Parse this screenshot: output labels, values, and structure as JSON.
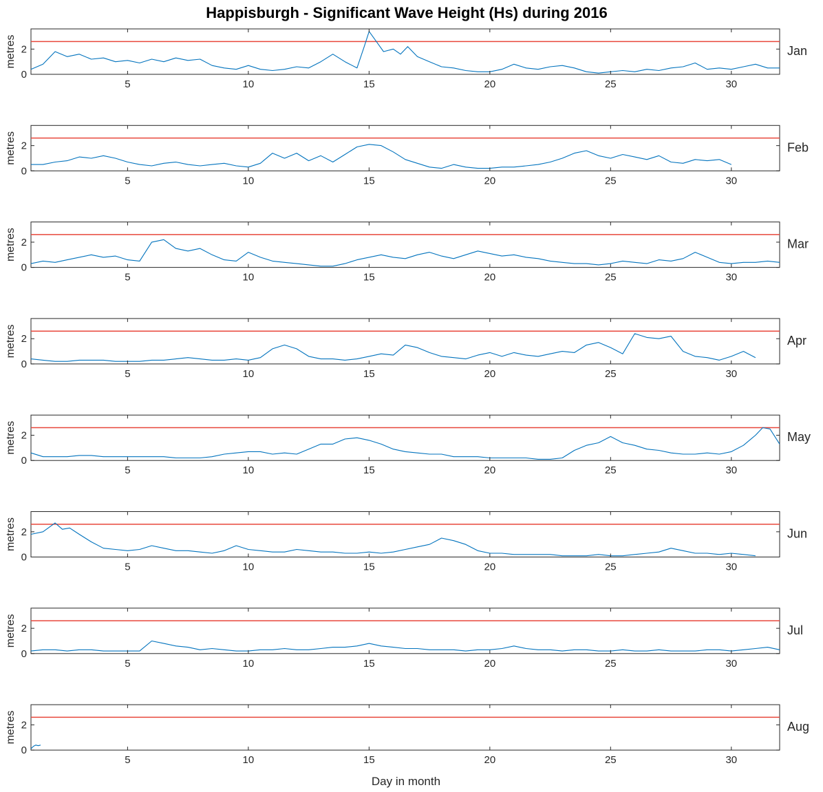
{
  "chart_data": {
    "type": "line",
    "title": "Happisburgh - Significant Wave Height (Hs) during 2016",
    "xlabel": "Day in month",
    "ylabel": "metres",
    "xlim": [
      1,
      32
    ],
    "ylim": [
      0,
      3.6
    ],
    "xticks": [
      5,
      10,
      15,
      20,
      25,
      30
    ],
    "yticks": [
      0,
      2
    ],
    "grid": false,
    "threshold": 2.6,
    "colors": {
      "series": "#0072BD",
      "threshold": "#E8463A"
    },
    "panels": [
      {
        "month": "Jan",
        "x": [
          1,
          1.5,
          2,
          2.5,
          3,
          3.5,
          4,
          4.5,
          5,
          5.5,
          6,
          6.5,
          7,
          7.5,
          8,
          8.5,
          9,
          9.5,
          10,
          10.5,
          11,
          11.5,
          12,
          12.5,
          13,
          13.5,
          14,
          14.5,
          14.8,
          15,
          15.3,
          15.6,
          16,
          16.3,
          16.6,
          17,
          17.5,
          18,
          18.5,
          19,
          19.5,
          20,
          20.5,
          21,
          21.5,
          22,
          22.5,
          23,
          23.5,
          24,
          24.5,
          25,
          25.5,
          26,
          26.5,
          27,
          27.5,
          28,
          28.5,
          29,
          29.5,
          30,
          30.5,
          31,
          31.5,
          32
        ],
        "y": [
          0.4,
          0.8,
          1.8,
          1.4,
          1.6,
          1.2,
          1.3,
          1.0,
          1.1,
          0.9,
          1.2,
          1.0,
          1.3,
          1.1,
          1.2,
          0.7,
          0.5,
          0.4,
          0.7,
          0.4,
          0.3,
          0.4,
          0.6,
          0.5,
          1.0,
          1.6,
          1.0,
          0.5,
          2.2,
          3.4,
          2.6,
          1.8,
          2.0,
          1.6,
          2.2,
          1.4,
          1.0,
          0.6,
          0.5,
          0.3,
          0.2,
          0.2,
          0.4,
          0.8,
          0.5,
          0.4,
          0.6,
          0.7,
          0.5,
          0.2,
          0.1,
          0.2,
          0.3,
          0.2,
          0.4,
          0.3,
          0.5,
          0.6,
          0.9,
          0.4,
          0.5,
          0.4,
          0.6,
          0.8,
          0.5,
          0.5
        ]
      },
      {
        "month": "Feb",
        "x": [
          1,
          1.5,
          2,
          2.5,
          3,
          3.5,
          4,
          4.5,
          5,
          5.5,
          6,
          6.5,
          7,
          7.5,
          8,
          8.5,
          9,
          9.5,
          10,
          10.5,
          11,
          11.5,
          12,
          12.5,
          13,
          13.5,
          14,
          14.5,
          15,
          15.5,
          16,
          16.5,
          17,
          17.5,
          18,
          18.5,
          19,
          19.5,
          20,
          20.5,
          21,
          21.5,
          22,
          22.5,
          23,
          23.5,
          24,
          24.5,
          25,
          25.5,
          26,
          26.5,
          27,
          27.5,
          28,
          28.5,
          29,
          29.5,
          30
        ],
        "y": [
          0.5,
          0.5,
          0.7,
          0.8,
          1.1,
          1.0,
          1.2,
          1.0,
          0.7,
          0.5,
          0.4,
          0.6,
          0.7,
          0.5,
          0.4,
          0.5,
          0.6,
          0.4,
          0.3,
          0.6,
          1.4,
          1.0,
          1.4,
          0.8,
          1.2,
          0.7,
          1.3,
          1.9,
          2.1,
          2.0,
          1.5,
          0.9,
          0.6,
          0.3,
          0.2,
          0.5,
          0.3,
          0.2,
          0.2,
          0.3,
          0.3,
          0.4,
          0.5,
          0.7,
          1.0,
          1.4,
          1.6,
          1.2,
          1.0,
          1.3,
          1.1,
          0.9,
          1.2,
          0.7,
          0.6,
          0.9,
          0.8,
          0.9,
          0.5
        ]
      },
      {
        "month": "Mar",
        "x": [
          1,
          1.5,
          2,
          2.5,
          3,
          3.5,
          4,
          4.5,
          5,
          5.5,
          6,
          6.5,
          7,
          7.5,
          8,
          8.5,
          9,
          9.5,
          10,
          10.5,
          11,
          11.5,
          12,
          12.5,
          13,
          13.5,
          14,
          14.5,
          15,
          15.5,
          16,
          16.5,
          17,
          17.5,
          18,
          18.5,
          19,
          19.5,
          20,
          20.5,
          21,
          21.5,
          22,
          22.5,
          23,
          23.5,
          24,
          24.5,
          25,
          25.5,
          26,
          26.5,
          27,
          27.5,
          28,
          28.5,
          29,
          29.5,
          30,
          30.5,
          31,
          31.5,
          32
        ],
        "y": [
          0.3,
          0.5,
          0.4,
          0.6,
          0.8,
          1.0,
          0.8,
          0.9,
          0.6,
          0.5,
          2.0,
          2.2,
          1.5,
          1.3,
          1.5,
          1.0,
          0.6,
          0.5,
          1.2,
          0.8,
          0.5,
          0.4,
          0.3,
          0.2,
          0.1,
          0.1,
          0.3,
          0.6,
          0.8,
          1.0,
          0.8,
          0.7,
          1.0,
          1.2,
          0.9,
          0.7,
          1.0,
          1.3,
          1.1,
          0.9,
          1.0,
          0.8,
          0.7,
          0.5,
          0.4,
          0.3,
          0.3,
          0.2,
          0.3,
          0.5,
          0.4,
          0.3,
          0.6,
          0.5,
          0.7,
          1.2,
          0.8,
          0.4,
          0.3,
          0.4,
          0.4,
          0.5,
          0.4
        ]
      },
      {
        "month": "Apr",
        "x": [
          1,
          1.5,
          2,
          2.5,
          3,
          3.5,
          4,
          4.5,
          5,
          5.5,
          6,
          6.5,
          7,
          7.5,
          8,
          8.5,
          9,
          9.5,
          10,
          10.5,
          11,
          11.5,
          12,
          12.5,
          13,
          13.5,
          14,
          14.5,
          15,
          15.5,
          16,
          16.5,
          17,
          17.5,
          18,
          18.5,
          19,
          19.5,
          20,
          20.5,
          21,
          21.5,
          22,
          22.5,
          23,
          23.5,
          24,
          24.5,
          25,
          25.5,
          26,
          26.5,
          27,
          27.5,
          28,
          28.5,
          29,
          29.5,
          30,
          30.5,
          31
        ],
        "y": [
          0.4,
          0.3,
          0.2,
          0.2,
          0.3,
          0.3,
          0.3,
          0.2,
          0.2,
          0.2,
          0.3,
          0.3,
          0.4,
          0.5,
          0.4,
          0.3,
          0.3,
          0.4,
          0.3,
          0.5,
          1.2,
          1.5,
          1.2,
          0.6,
          0.4,
          0.4,
          0.3,
          0.4,
          0.6,
          0.8,
          0.7,
          1.5,
          1.3,
          0.9,
          0.6,
          0.5,
          0.4,
          0.7,
          0.9,
          0.6,
          0.9,
          0.7,
          0.6,
          0.8,
          1.0,
          0.9,
          1.5,
          1.7,
          1.3,
          0.8,
          2.4,
          2.1,
          2.0,
          2.2,
          1.0,
          0.6,
          0.5,
          0.3,
          0.6,
          1.0,
          0.5
        ]
      },
      {
        "month": "May",
        "x": [
          1,
          1.5,
          2,
          2.5,
          3,
          3.5,
          4,
          4.5,
          5,
          5.5,
          6,
          6.5,
          7,
          7.5,
          8,
          8.5,
          9,
          9.5,
          10,
          10.5,
          11,
          11.5,
          12,
          12.5,
          13,
          13.5,
          14,
          14.5,
          15,
          15.5,
          16,
          16.5,
          17,
          17.5,
          18,
          18.5,
          19,
          19.5,
          20,
          20.5,
          21,
          21.5,
          22,
          22.5,
          23,
          23.5,
          24,
          24.5,
          25,
          25.5,
          26,
          26.5,
          27,
          27.5,
          28,
          28.5,
          29,
          29.5,
          30,
          30.5,
          31,
          31.3,
          31.6,
          32
        ],
        "y": [
          0.6,
          0.3,
          0.3,
          0.3,
          0.4,
          0.4,
          0.3,
          0.3,
          0.3,
          0.3,
          0.3,
          0.3,
          0.2,
          0.2,
          0.2,
          0.3,
          0.5,
          0.6,
          0.7,
          0.7,
          0.5,
          0.6,
          0.5,
          0.9,
          1.3,
          1.3,
          1.7,
          1.8,
          1.6,
          1.3,
          0.9,
          0.7,
          0.6,
          0.5,
          0.5,
          0.3,
          0.3,
          0.3,
          0.2,
          0.2,
          0.2,
          0.2,
          0.1,
          0.1,
          0.2,
          0.8,
          1.2,
          1.4,
          1.9,
          1.4,
          1.2,
          0.9,
          0.8,
          0.6,
          0.5,
          0.5,
          0.6,
          0.5,
          0.7,
          1.2,
          2.0,
          2.6,
          2.5,
          1.3
        ]
      },
      {
        "month": "Jun",
        "x": [
          1,
          1.5,
          2,
          2.3,
          2.6,
          3,
          3.5,
          4,
          4.5,
          5,
          5.5,
          6,
          6.5,
          7,
          7.5,
          8,
          8.5,
          9,
          9.5,
          10,
          10.5,
          11,
          11.5,
          12,
          12.5,
          13,
          13.5,
          14,
          14.5,
          15,
          15.5,
          16,
          16.5,
          17,
          17.5,
          18,
          18.5,
          19,
          19.5,
          20,
          20.5,
          21,
          21.5,
          22,
          22.5,
          23,
          23.5,
          24,
          24.5,
          25,
          25.5,
          26,
          26.5,
          27,
          27.5,
          28,
          28.5,
          29,
          29.5,
          30,
          30.5,
          31
        ],
        "y": [
          1.8,
          2.0,
          2.7,
          2.2,
          2.3,
          1.8,
          1.2,
          0.7,
          0.6,
          0.5,
          0.6,
          0.9,
          0.7,
          0.5,
          0.5,
          0.4,
          0.3,
          0.5,
          0.9,
          0.6,
          0.5,
          0.4,
          0.4,
          0.6,
          0.5,
          0.4,
          0.4,
          0.3,
          0.3,
          0.4,
          0.3,
          0.4,
          0.6,
          0.8,
          1.0,
          1.5,
          1.3,
          1.0,
          0.5,
          0.3,
          0.3,
          0.2,
          0.2,
          0.2,
          0.2,
          0.1,
          0.1,
          0.1,
          0.2,
          0.1,
          0.1,
          0.2,
          0.3,
          0.4,
          0.7,
          0.5,
          0.3,
          0.3,
          0.2,
          0.3,
          0.2,
          0.1
        ]
      },
      {
        "month": "Jul",
        "x": [
          1,
          1.5,
          2,
          2.5,
          3,
          3.5,
          4,
          4.5,
          5,
          5.5,
          6,
          6.5,
          7,
          7.5,
          8,
          8.5,
          9,
          9.5,
          10,
          10.5,
          11,
          11.5,
          12,
          12.5,
          13,
          13.5,
          14,
          14.5,
          15,
          15.5,
          16,
          16.5,
          17,
          17.5,
          18,
          18.5,
          19,
          19.5,
          20,
          20.5,
          21,
          21.5,
          22,
          22.5,
          23,
          23.5,
          24,
          24.5,
          25,
          25.5,
          26,
          26.5,
          27,
          27.5,
          28,
          28.5,
          29,
          29.5,
          30,
          30.5,
          31,
          31.5,
          32
        ],
        "y": [
          0.2,
          0.3,
          0.3,
          0.2,
          0.3,
          0.3,
          0.2,
          0.2,
          0.2,
          0.2,
          1.0,
          0.8,
          0.6,
          0.5,
          0.3,
          0.4,
          0.3,
          0.2,
          0.2,
          0.3,
          0.3,
          0.4,
          0.3,
          0.3,
          0.4,
          0.5,
          0.5,
          0.6,
          0.8,
          0.6,
          0.5,
          0.4,
          0.4,
          0.3,
          0.3,
          0.3,
          0.2,
          0.3,
          0.3,
          0.4,
          0.6,
          0.4,
          0.3,
          0.3,
          0.2,
          0.3,
          0.3,
          0.2,
          0.2,
          0.3,
          0.2,
          0.2,
          0.3,
          0.2,
          0.2,
          0.2,
          0.3,
          0.3,
          0.2,
          0.3,
          0.4,
          0.5,
          0.3
        ]
      },
      {
        "month": "Aug",
        "x": [
          1,
          1.1,
          1.2,
          1.3,
          1.4
        ],
        "y": [
          0.1,
          0.3,
          0.4,
          0.35,
          0.4
        ]
      }
    ]
  }
}
